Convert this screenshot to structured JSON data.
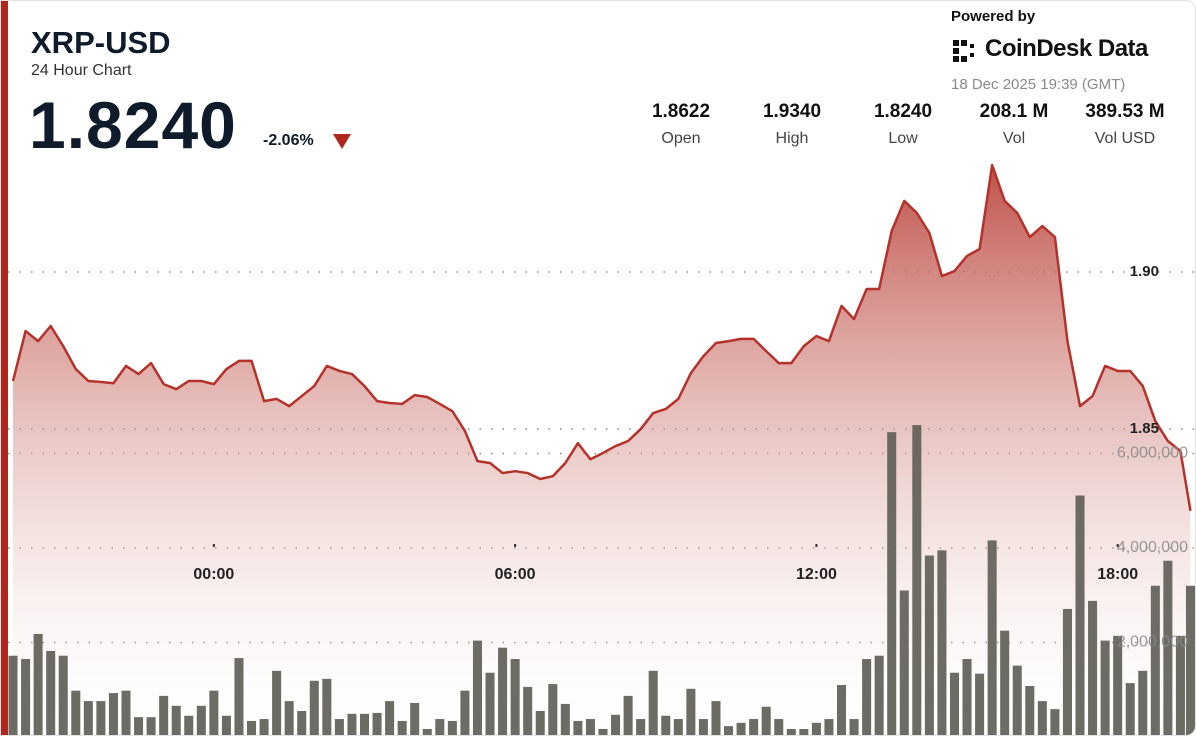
{
  "chart_data": {
    "type": "line",
    "symbol": "XRP-USD",
    "subtitle": "24 Hour Chart",
    "price": "1.8240",
    "change": "-2.06%",
    "powered_by": "Powered by",
    "brand": "CoinDesk Data",
    "timestamp": "18 Dec 2025 19:39 (GMT)",
    "stats": [
      {
        "value": "1.8622",
        "label": "Open"
      },
      {
        "value": "1.9340",
        "label": "High"
      },
      {
        "value": "1.8240",
        "label": "Low"
      },
      {
        "value": "208.1 M",
        "label": "Vol"
      },
      {
        "value": "389.53 M",
        "label": "Vol USD"
      }
    ],
    "x": [
      -4.0,
      -3.75,
      -3.5,
      -3.25,
      -3.0,
      -2.75,
      -2.5,
      -2.25,
      -2.0,
      -1.75,
      -1.5,
      -1.25,
      -1.0,
      -0.75,
      -0.5,
      -0.25,
      0,
      0.25,
      0.5,
      0.75,
      1.0,
      1.25,
      1.5,
      1.75,
      2.0,
      2.25,
      2.5,
      2.75,
      3.0,
      3.25,
      3.5,
      3.75,
      4.0,
      4.25,
      4.5,
      4.75,
      5.0,
      5.25,
      5.5,
      5.75,
      6.0,
      6.25,
      6.5,
      6.75,
      7.0,
      7.25,
      7.5,
      7.75,
      8.0,
      8.25,
      8.5,
      8.75,
      9.0,
      9.25,
      9.5,
      9.75,
      10.0,
      10.25,
      10.5,
      10.75,
      11.0,
      11.25,
      11.5,
      11.75,
      12.0,
      12.25,
      12.5,
      12.75,
      13.0,
      13.25,
      13.5,
      13.75,
      14.0,
      14.25,
      14.5,
      14.75,
      15.0,
      15.25,
      15.5,
      15.75,
      16.0,
      16.25,
      16.5,
      16.75,
      17.0,
      17.25,
      17.5,
      17.75,
      18.0,
      18.25,
      18.5,
      18.75,
      19.0,
      19.25,
      19.45
    ],
    "xlim": [
      -4.1,
      19.58
    ],
    "xticks": [
      {
        "value": 0,
        "label": "00:00"
      },
      {
        "value": 6,
        "label": "06:00"
      },
      {
        "value": 12,
        "label": "12:00"
      },
      {
        "value": 18,
        "label": "18:00"
      }
    ],
    "ylim": [
      1.752,
      1.9385
    ],
    "yticks": [
      {
        "value": 1.9,
        "label": "1.90"
      },
      1.85
    ],
    "y2lim": [
      0,
      12400000
    ],
    "y2ticks": [
      {
        "value": 6000000,
        "label": "6,000,000"
      },
      {
        "value": 4000000,
        "label": "4,000,000"
      },
      {
        "value": 2000000,
        "label": "2,000,000"
      }
    ],
    "grid": true,
    "series": [
      {
        "type": "line",
        "color": "#b5322a",
        "values": [
          1.8653,
          1.8812,
          1.878,
          1.8828,
          1.8764,
          1.8691,
          1.8653,
          1.865,
          1.8646,
          1.8701,
          1.8675,
          1.871,
          1.8643,
          1.8627,
          1.8653,
          1.8653,
          1.8643,
          1.8691,
          1.8717,
          1.8717,
          1.8589,
          1.8596,
          1.8573,
          1.8605,
          1.8637,
          1.8701,
          1.8685,
          1.8675,
          1.8637,
          1.8589,
          1.8583,
          1.858,
          1.8608,
          1.8602,
          1.858,
          1.8557,
          1.8494,
          1.8398,
          1.8392,
          1.836,
          1.8366,
          1.836,
          1.8341,
          1.835,
          1.8392,
          1.8455,
          1.8404,
          1.8424,
          1.8446,
          1.8462,
          1.85,
          1.8551,
          1.8564,
          1.8596,
          1.8678,
          1.8732,
          1.8774,
          1.878,
          1.8787,
          1.8787,
          1.8748,
          1.871,
          1.871,
          1.8764,
          1.8796,
          1.878,
          1.8892,
          1.885,
          1.8946,
          1.8946,
          1.9131,
          1.9226,
          1.9188,
          1.9124,
          1.8987,
          1.9003,
          1.9051,
          1.9073,
          1.934,
          1.9226,
          1.9188,
          1.9111,
          1.9146,
          1.9111,
          1.878,
          1.8573,
          1.8605,
          1.8701,
          1.8685,
          1.8685,
          1.8637,
          1.8525,
          1.8462,
          1.843,
          1.824
        ]
      },
      {
        "type": "bar",
        "axis": "y2",
        "color": "#5f5f58",
        "values": [
          1720000,
          1650000,
          2180000,
          1820000,
          1720000,
          980000,
          760000,
          760000,
          930000,
          980000,
          420000,
          420000,
          870000,
          660000,
          450000,
          660000,
          980000,
          450000,
          1670000,
          340000,
          380000,
          1400000,
          760000,
          550000,
          1190000,
          1230000,
          380000,
          490000,
          490000,
          510000,
          760000,
          340000,
          720000,
          170000,
          380000,
          340000,
          980000,
          2040000,
          1360000,
          1890000,
          1650000,
          1060000,
          550000,
          1120000,
          700000,
          340000,
          380000,
          170000,
          470000,
          870000,
          380000,
          1400000,
          450000,
          380000,
          1020000,
          380000,
          760000,
          230000,
          300000,
          380000,
          640000,
          380000,
          170000,
          170000,
          300000,
          380000,
          1100000,
          380000,
          1650000,
          1720000,
          6450000,
          3100000,
          6600000,
          3840000,
          3950000,
          1360000,
          1650000,
          1340000,
          4160000,
          2250000,
          1510000,
          1080000,
          760000,
          590000,
          2710000,
          5110000,
          2880000,
          2040000,
          2140000,
          1140000,
          1400000,
          3200000,
          3730000,
          2140000,
          3200000
        ]
      }
    ]
  }
}
